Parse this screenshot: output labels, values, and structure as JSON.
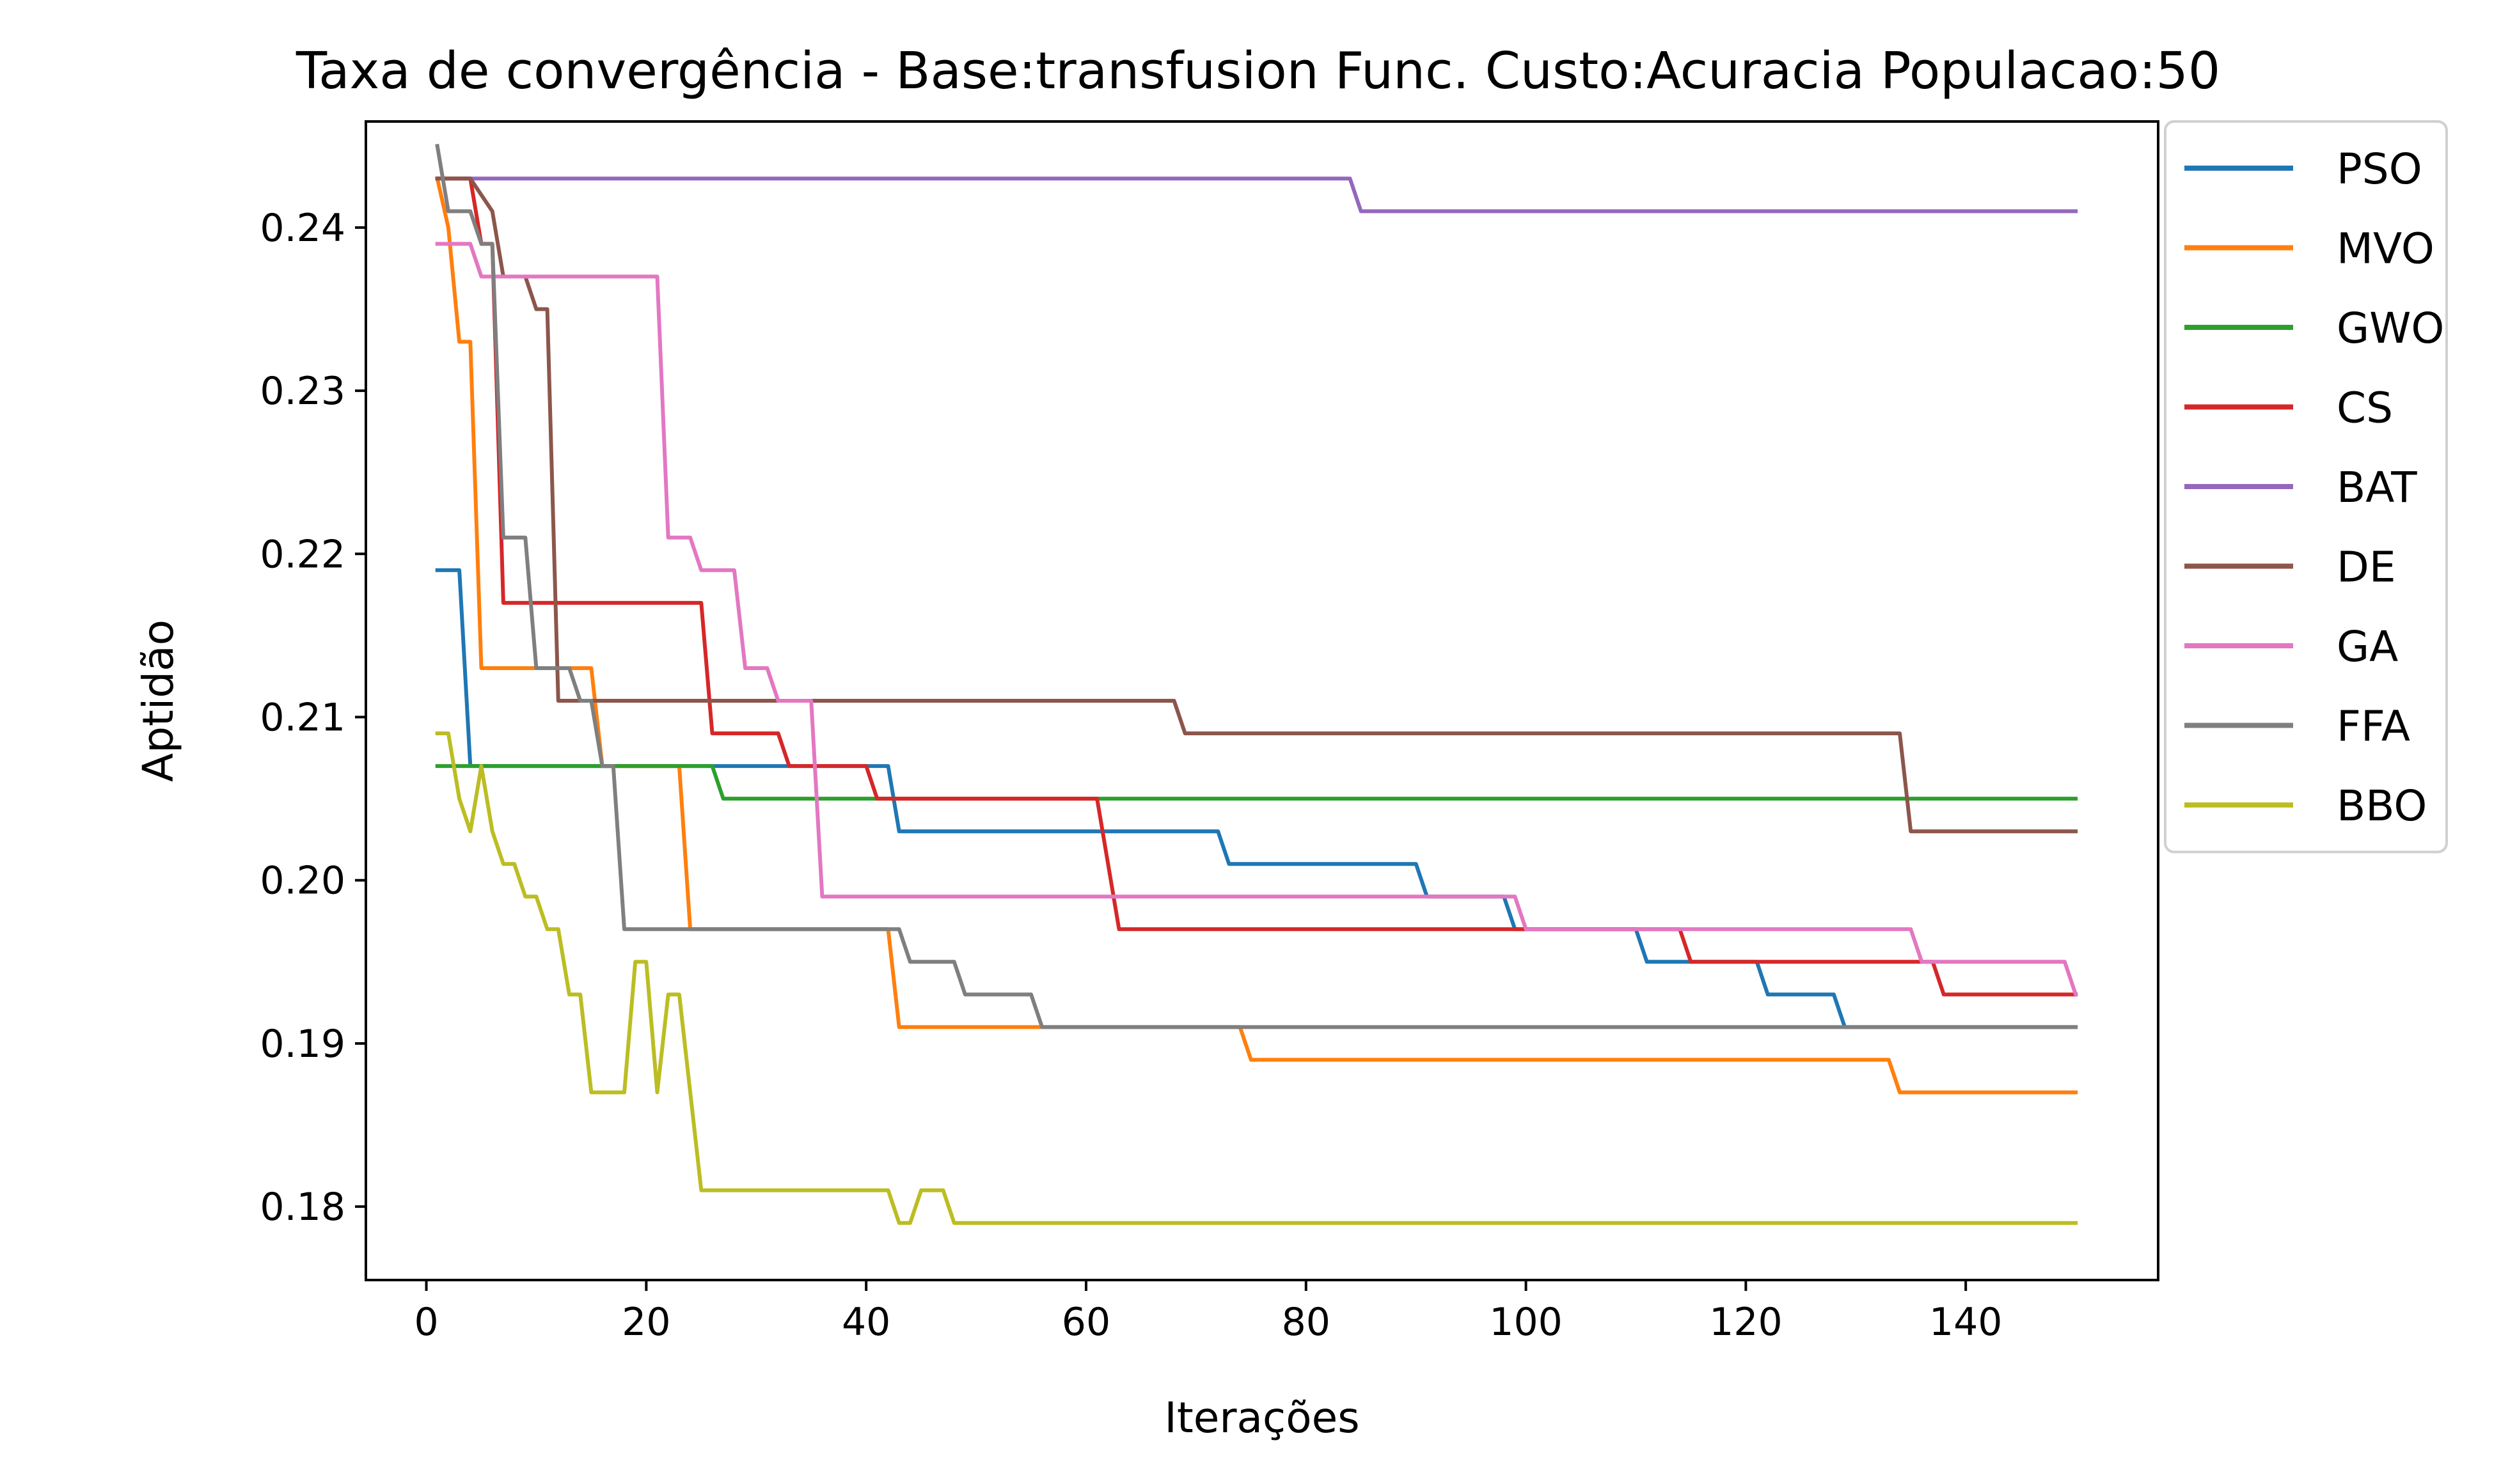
{
  "chart_data": {
    "type": "line",
    "title": "Taxa de convergência - Base:transfusion Func. Custo:Acuracia Populacao:50",
    "xlabel": "Iterações",
    "ylabel": "Aptidão",
    "xlim": [
      -5.5,
      157.5
    ],
    "ylim": [
      0.1755,
      0.2465
    ],
    "xticks": [
      0,
      20,
      40,
      60,
      80,
      100,
      120,
      140
    ],
    "xtick_labels": [
      "0",
      "20",
      "40",
      "60",
      "80",
      "100",
      "120",
      "140"
    ],
    "yticks": [
      0.18,
      0.19,
      0.2,
      0.21,
      0.22,
      0.23,
      0.24
    ],
    "ytick_labels": [
      "0.18",
      "0.19",
      "0.20",
      "0.21",
      "0.22",
      "0.23",
      "0.24"
    ],
    "grid": false,
    "legend": "outside-top-right",
    "series": [
      {
        "name": "PSO",
        "color": "#1f77b4",
        "points": [
          [
            1,
            0.219
          ],
          [
            3,
            0.219
          ],
          [
            4,
            0.207
          ],
          [
            42,
            0.207
          ],
          [
            43,
            0.203
          ],
          [
            72,
            0.203
          ],
          [
            73,
            0.201
          ],
          [
            90,
            0.201
          ],
          [
            91,
            0.199
          ],
          [
            98,
            0.199
          ],
          [
            99,
            0.197
          ],
          [
            110,
            0.197
          ],
          [
            111,
            0.195
          ],
          [
            121,
            0.195
          ],
          [
            122,
            0.193
          ],
          [
            128,
            0.193
          ],
          [
            129,
            0.191
          ],
          [
            150,
            0.191
          ]
        ]
      },
      {
        "name": "MVO",
        "color": "#ff7f0e",
        "points": [
          [
            1,
            0.243
          ],
          [
            2,
            0.24
          ],
          [
            3,
            0.233
          ],
          [
            4,
            0.233
          ],
          [
            5,
            0.213
          ],
          [
            15,
            0.213
          ],
          [
            16,
            0.207
          ],
          [
            23,
            0.207
          ],
          [
            24,
            0.197
          ],
          [
            42,
            0.197
          ],
          [
            43,
            0.191
          ],
          [
            74,
            0.191
          ],
          [
            75,
            0.189
          ],
          [
            133,
            0.189
          ],
          [
            134,
            0.187
          ],
          [
            150,
            0.187
          ]
        ]
      },
      {
        "name": "GWO",
        "color": "#2ca02c",
        "points": [
          [
            1,
            0.207
          ],
          [
            26,
            0.207
          ],
          [
            27,
            0.205
          ],
          [
            150,
            0.205
          ]
        ]
      },
      {
        "name": "CS",
        "color": "#d62728",
        "points": [
          [
            1,
            0.243
          ],
          [
            4,
            0.243
          ],
          [
            5,
            0.239
          ],
          [
            6,
            0.239
          ],
          [
            7,
            0.217
          ],
          [
            25,
            0.217
          ],
          [
            26,
            0.209
          ],
          [
            32,
            0.209
          ],
          [
            33,
            0.207
          ],
          [
            40,
            0.207
          ],
          [
            41,
            0.205
          ],
          [
            61,
            0.205
          ],
          [
            63,
            0.197
          ],
          [
            98,
            0.197
          ],
          [
            99,
            0.197
          ],
          [
            114,
            0.197
          ],
          [
            115,
            0.195
          ],
          [
            137,
            0.195
          ],
          [
            138,
            0.193
          ],
          [
            150,
            0.193
          ]
        ]
      },
      {
        "name": "BAT",
        "color": "#9467bd",
        "points": [
          [
            1,
            0.243
          ],
          [
            84,
            0.243
          ],
          [
            85,
            0.241
          ],
          [
            150,
            0.241
          ]
        ]
      },
      {
        "name": "DE",
        "color": "#8c564b",
        "points": [
          [
            1,
            0.243
          ],
          [
            4,
            0.243
          ],
          [
            6,
            0.241
          ],
          [
            7,
            0.237
          ],
          [
            9,
            0.237
          ],
          [
            10,
            0.235
          ],
          [
            11,
            0.235
          ],
          [
            12,
            0.211
          ],
          [
            68,
            0.211
          ],
          [
            69,
            0.209
          ],
          [
            134,
            0.209
          ],
          [
            135,
            0.203
          ],
          [
            150,
            0.203
          ]
        ]
      },
      {
        "name": "GA",
        "color": "#e377c2",
        "points": [
          [
            1,
            0.239
          ],
          [
            4,
            0.239
          ],
          [
            5,
            0.237
          ],
          [
            21,
            0.237
          ],
          [
            22,
            0.221
          ],
          [
            24,
            0.221
          ],
          [
            25,
            0.219
          ],
          [
            28,
            0.219
          ],
          [
            29,
            0.213
          ],
          [
            31,
            0.213
          ],
          [
            32,
            0.211
          ],
          [
            35,
            0.211
          ],
          [
            36,
            0.199
          ],
          [
            99,
            0.199
          ],
          [
            100,
            0.197
          ],
          [
            135,
            0.197
          ],
          [
            136,
            0.195
          ],
          [
            149,
            0.195
          ],
          [
            150,
            0.193
          ]
        ]
      },
      {
        "name": "FFA",
        "color": "#7f7f7f",
        "points": [
          [
            1,
            0.245
          ],
          [
            2,
            0.241
          ],
          [
            4,
            0.241
          ],
          [
            5,
            0.239
          ],
          [
            6,
            0.239
          ],
          [
            7,
            0.221
          ],
          [
            9,
            0.221
          ],
          [
            10,
            0.213
          ],
          [
            13,
            0.213
          ],
          [
            14,
            0.211
          ],
          [
            15,
            0.211
          ],
          [
            16,
            0.207
          ],
          [
            17,
            0.207
          ],
          [
            18,
            0.197
          ],
          [
            43,
            0.197
          ],
          [
            44,
            0.195
          ],
          [
            48,
            0.195
          ],
          [
            49,
            0.193
          ],
          [
            55,
            0.193
          ],
          [
            56,
            0.191
          ],
          [
            150,
            0.191
          ]
        ]
      },
      {
        "name": "BBO",
        "color": "#bcbd22",
        "points": [
          [
            1,
            0.209
          ],
          [
            2,
            0.209
          ],
          [
            3,
            0.205
          ],
          [
            4,
            0.203
          ],
          [
            5,
            0.207
          ],
          [
            6,
            0.203
          ],
          [
            7,
            0.201
          ],
          [
            8,
            0.201
          ],
          [
            9,
            0.199
          ],
          [
            10,
            0.199
          ],
          [
            11,
            0.197
          ],
          [
            12,
            0.197
          ],
          [
            13,
            0.193
          ],
          [
            14,
            0.193
          ],
          [
            15,
            0.187
          ],
          [
            18,
            0.187
          ],
          [
            19,
            0.195
          ],
          [
            20,
            0.195
          ],
          [
            21,
            0.187
          ],
          [
            22,
            0.193
          ],
          [
            23,
            0.193
          ],
          [
            25,
            0.181
          ],
          [
            42,
            0.181
          ],
          [
            43,
            0.179
          ],
          [
            44,
            0.179
          ],
          [
            45,
            0.181
          ],
          [
            47,
            0.181
          ],
          [
            48,
            0.179
          ],
          [
            150,
            0.179
          ]
        ]
      }
    ]
  }
}
